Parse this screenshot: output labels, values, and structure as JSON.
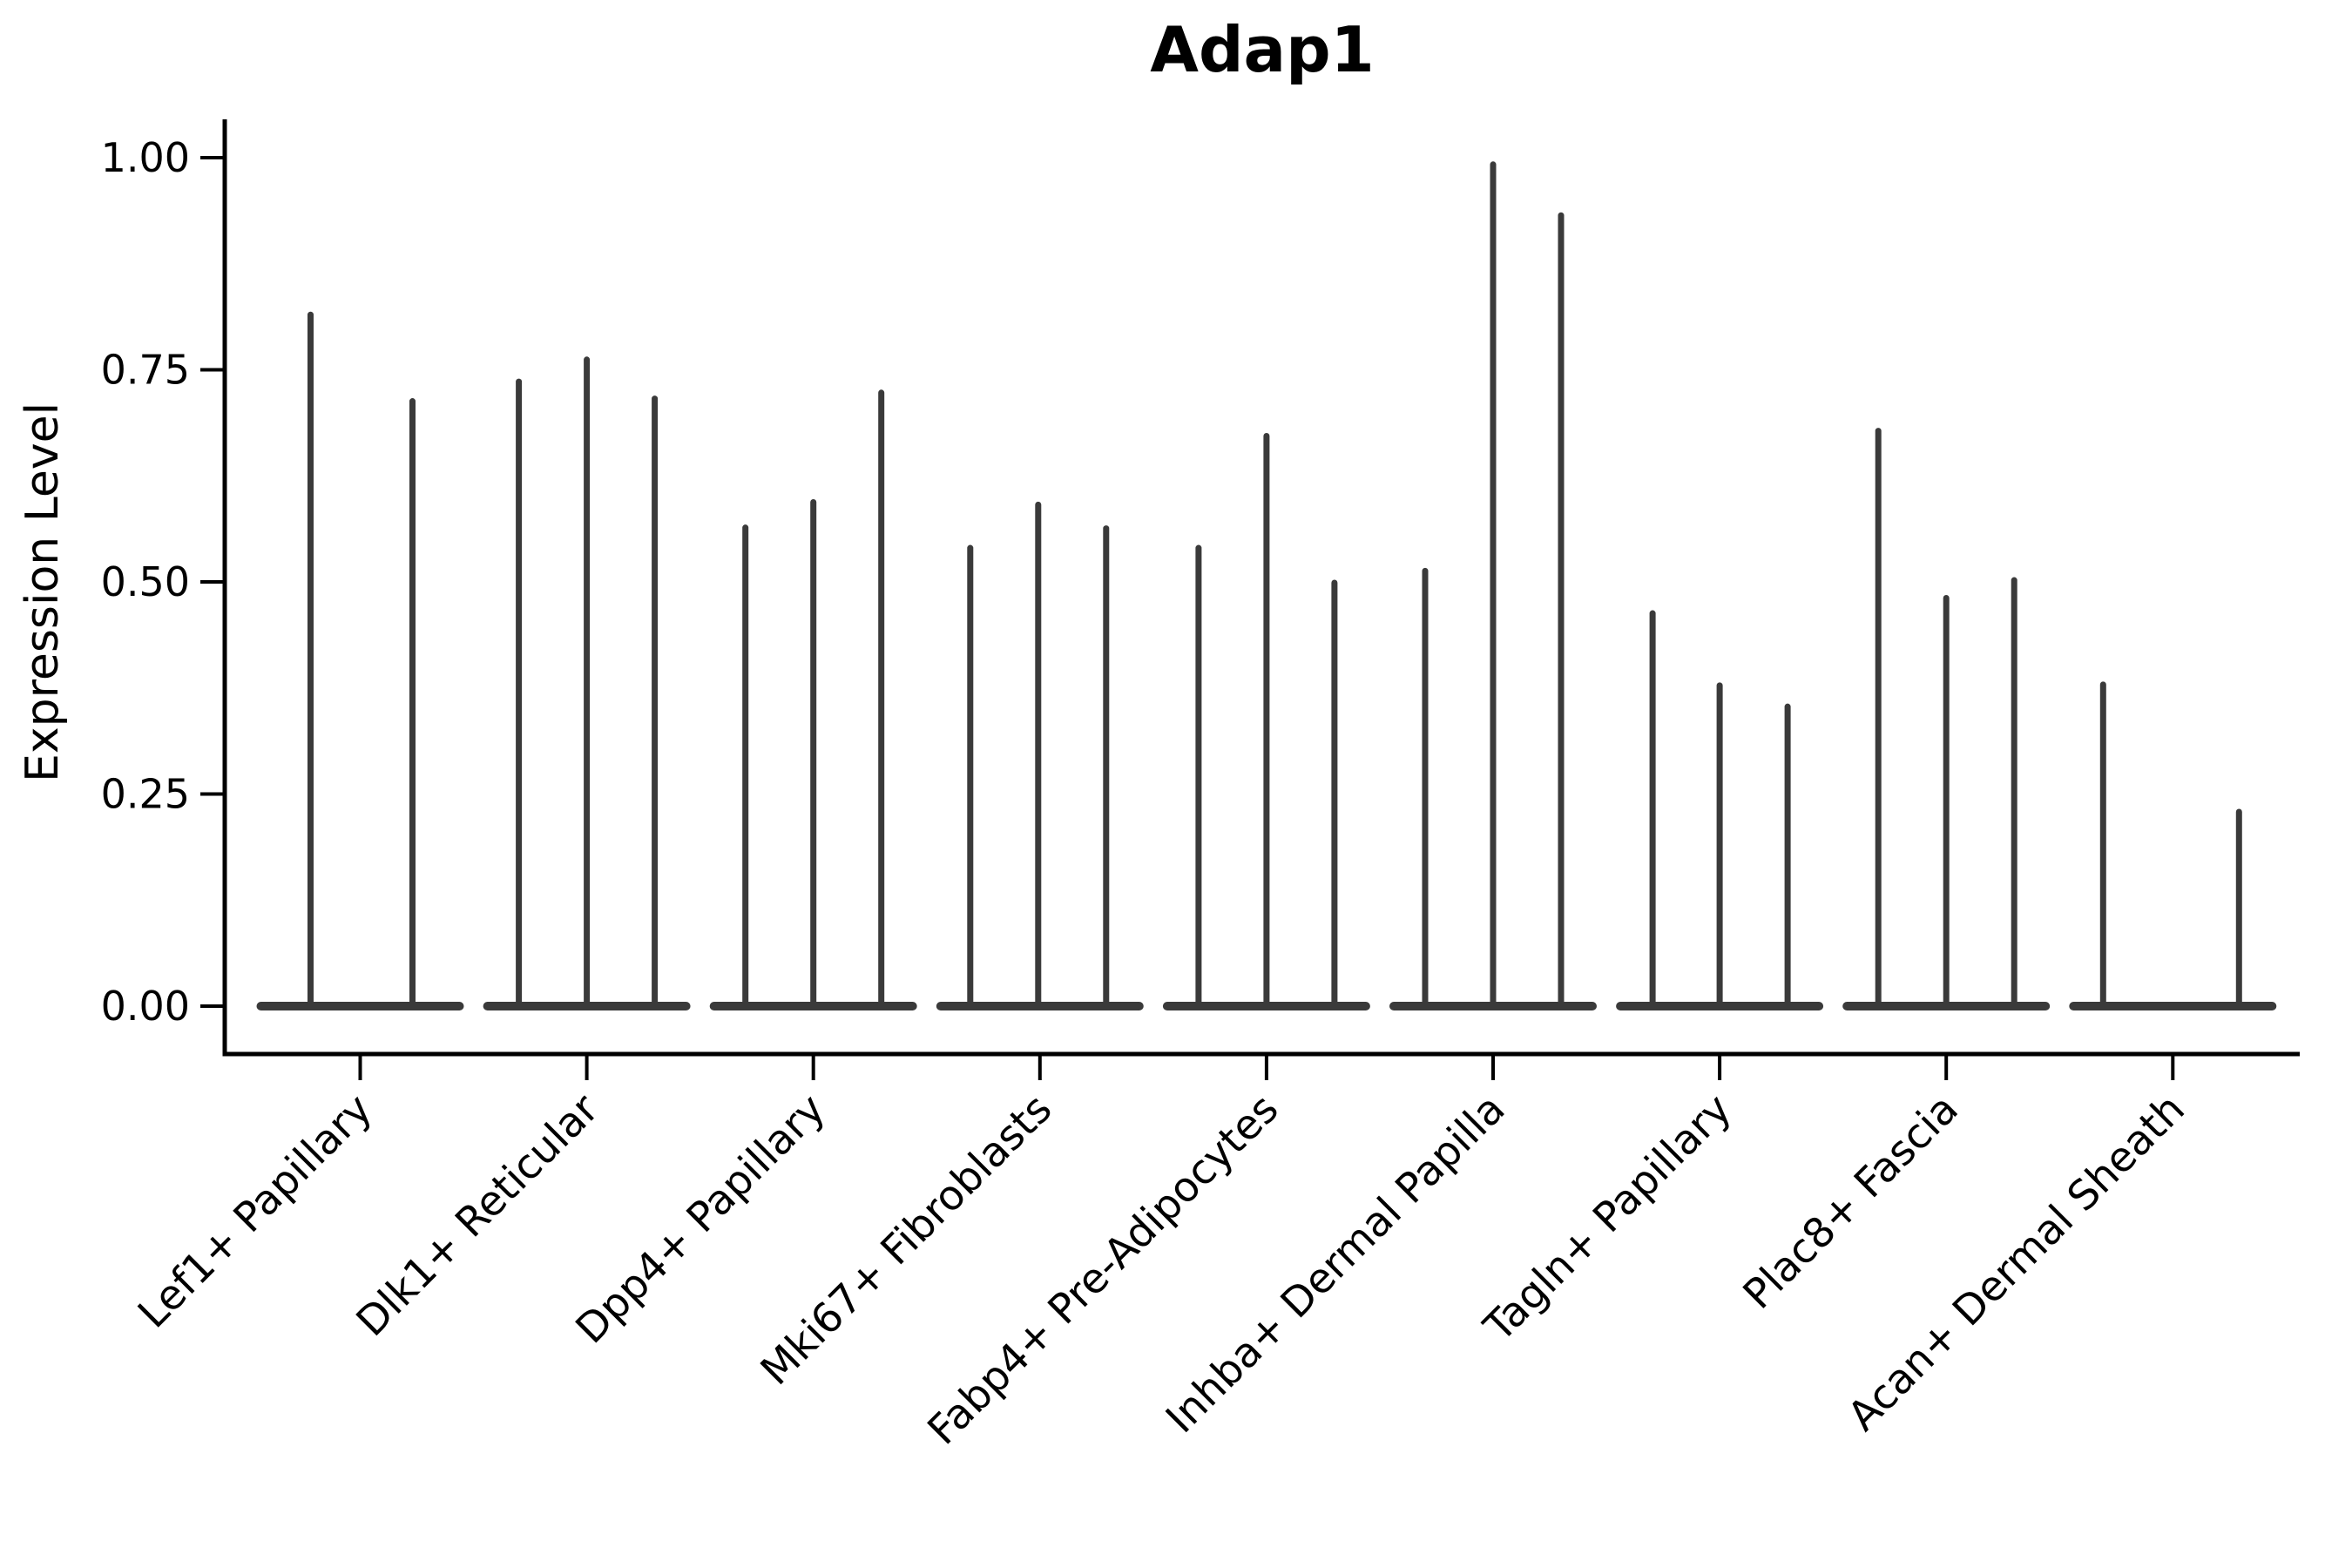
{
  "chart_data": {
    "type": "violin",
    "title": "Adap1",
    "xlabel": "",
    "ylabel": "Expression Level",
    "ylim": [
      0,
      1.0
    ],
    "grid": false,
    "legend": "none",
    "yticks": [
      {
        "label": "0.00",
        "value": 0.0
      },
      {
        "label": "0.25",
        "value": 0.25
      },
      {
        "label": "0.50",
        "value": 0.5
      },
      {
        "label": "0.75",
        "value": 0.75
      },
      {
        "label": "1.00",
        "value": 1.0
      }
    ],
    "categories": [
      "Lef1+ Papillary",
      "Dlk1+ Reticular",
      "Dpp4+ Papillary",
      "Mki67+ Fibroblasts",
      "Fabp4+ Pre-Adipocytes",
      "Inhba+ Dermal Papilla",
      "Tagln+ Papillary",
      "Plac8+ Fascia",
      "Acan+ Dermal Sheath"
    ],
    "groups": [
      {
        "label": "Lef1+ Papillary",
        "violins": [
          {
            "offset": -57,
            "peak": 0.815
          },
          {
            "offset": 60,
            "peak": 0.713
          }
        ]
      },
      {
        "label": "Dlk1+ Reticular",
        "violins": [
          {
            "offset": -78,
            "peak": 0.736
          },
          {
            "offset": 0,
            "peak": 0.762
          },
          {
            "offset": 78,
            "peak": 0.716
          }
        ]
      },
      {
        "label": "Dpp4+ Papillary",
        "violins": [
          {
            "offset": -78,
            "peak": 0.564
          },
          {
            "offset": 0,
            "peak": 0.594
          },
          {
            "offset": 78,
            "peak": 0.723
          }
        ]
      },
      {
        "label": "Mki67+ Fibroblasts",
        "violins": [
          {
            "offset": -80,
            "peak": 0.54
          },
          {
            "offset": -2,
            "peak": 0.591
          },
          {
            "offset": 76,
            "peak": 0.563
          }
        ]
      },
      {
        "label": "Fabp4+ Pre-Adipocytes",
        "violins": [
          {
            "offset": -78,
            "peak": 0.54
          },
          {
            "offset": 0,
            "peak": 0.672
          },
          {
            "offset": 78,
            "peak": 0.499
          }
        ]
      },
      {
        "label": "Inhba+ Dermal Papilla",
        "violins": [
          {
            "offset": -78,
            "peak": 0.513
          },
          {
            "offset": 0,
            "peak": 0.992
          },
          {
            "offset": 78,
            "peak": 0.932
          }
        ]
      },
      {
        "label": "Tagln+ Papillary",
        "violins": [
          {
            "offset": -77,
            "peak": 0.463
          },
          {
            "offset": 0,
            "peak": 0.378
          },
          {
            "offset": 78,
            "peak": 0.353
          }
        ]
      },
      {
        "label": "Plac8+ Fascia",
        "violins": [
          {
            "offset": -78,
            "peak": 0.678
          },
          {
            "offset": 0,
            "peak": 0.481
          },
          {
            "offset": 78,
            "peak": 0.502
          }
        ]
      },
      {
        "label": "Acan+ Dermal Sheath",
        "violins": [
          {
            "offset": -80,
            "peak": 0.379
          },
          {
            "offset": 76,
            "peak": 0.229
          }
        ]
      }
    ],
    "colors": {
      "violin": "#3a3a3a",
      "axis": "#000000",
      "background": "#ffffff"
    }
  }
}
